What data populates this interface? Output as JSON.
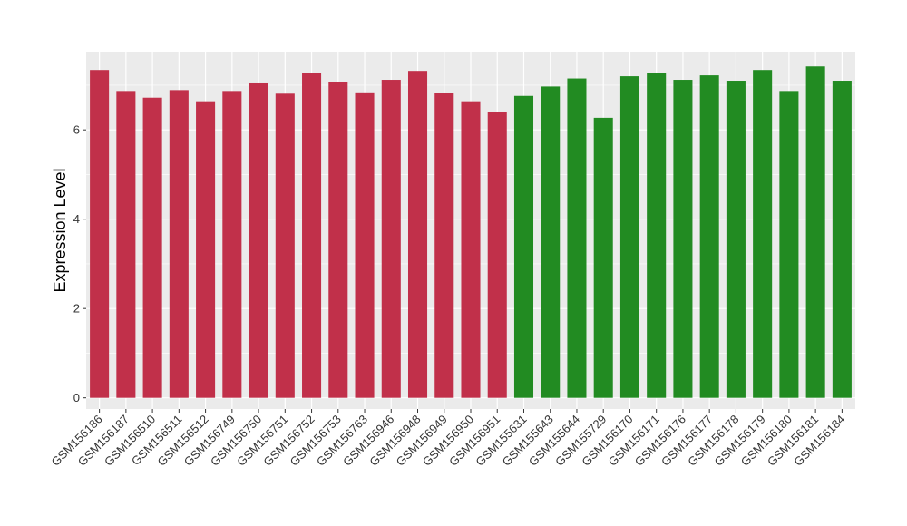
{
  "chart_data": {
    "type": "bar",
    "ylabel": "Expression Level",
    "xlabel": "",
    "ylim": [
      -0.25,
      7.75
    ],
    "yticks": [
      0,
      2,
      4,
      6
    ],
    "grid": true,
    "colors": {
      "group1": "#c1304a",
      "group2": "#228b22",
      "panel": "#ebebeb",
      "grid": "#ffffff"
    },
    "categories": [
      "GSM156186",
      "GSM156187",
      "GSM156510",
      "GSM156511",
      "GSM156512",
      "GSM156749",
      "GSM156750",
      "GSM156751",
      "GSM156752",
      "GSM156753",
      "GSM156763",
      "GSM156946",
      "GSM156948",
      "GSM156949",
      "GSM156950",
      "GSM156951",
      "GSM155631",
      "GSM155643",
      "GSM155644",
      "GSM155729",
      "GSM156170",
      "GSM156171",
      "GSM156176",
      "GSM156177",
      "GSM156178",
      "GSM156179",
      "GSM156180",
      "GSM156181",
      "GSM156184"
    ],
    "values": [
      7.34,
      6.87,
      6.72,
      6.89,
      6.64,
      6.87,
      7.06,
      6.81,
      7.28,
      7.08,
      6.84,
      7.12,
      7.32,
      6.82,
      6.64,
      6.41,
      6.76,
      6.97,
      7.15,
      6.27,
      7.2,
      7.28,
      7.12,
      7.22,
      7.1,
      7.34,
      6.87,
      7.42,
      7.1
    ],
    "groups": [
      "group1",
      "group1",
      "group1",
      "group1",
      "group1",
      "group1",
      "group1",
      "group1",
      "group1",
      "group1",
      "group1",
      "group1",
      "group1",
      "group1",
      "group1",
      "group1",
      "group2",
      "group2",
      "group2",
      "group2",
      "group2",
      "group2",
      "group2",
      "group2",
      "group2",
      "group2",
      "group2",
      "group2",
      "group2"
    ]
  }
}
